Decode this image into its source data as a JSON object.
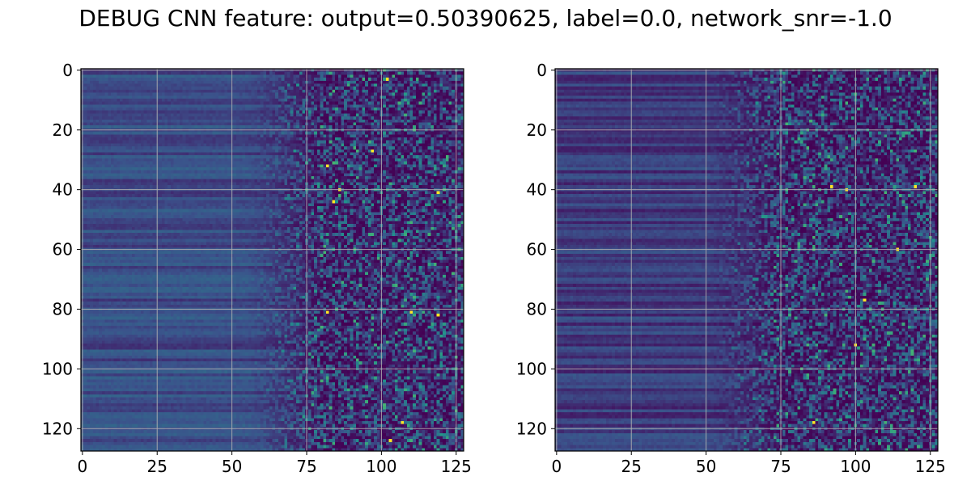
{
  "title": "DEBUG CNN feature: output=0.50390625, label=0.0, network_snr=-1.0",
  "colormap": [
    "#440154",
    "#3b528b",
    "#21918c",
    "#5ec962",
    "#fde725"
  ],
  "chart_data": [
    {
      "type": "heatmap",
      "panel": "left",
      "rows": 128,
      "cols": 128,
      "xlim": [
        -0.5,
        127.5
      ],
      "ylim": [
        127.5,
        -0.5
      ],
      "y_inverted": true,
      "grid": true,
      "xticks": [
        0,
        25,
        50,
        75,
        100,
        125
      ],
      "yticks": [
        0,
        20,
        40,
        60,
        80,
        100,
        120
      ],
      "xtick_labels": [
        "0",
        "25",
        "50",
        "75",
        "100",
        "125"
      ],
      "ytick_labels": [
        "0",
        "20",
        "40",
        "60",
        "80",
        "100",
        "120"
      ],
      "pattern": "horizontal row bands of low-medium intensity for columns 0-50; sparse noisy speckle with higher intensities for columns 70-127",
      "notable_bright_cells": [
        [
          102,
          3
        ],
        [
          97,
          27
        ],
        [
          82,
          32
        ],
        [
          86,
          40
        ],
        [
          84,
          44
        ],
        [
          119,
          41
        ],
        [
          110,
          81
        ],
        [
          119,
          82
        ],
        [
          82,
          81
        ],
        [
          107,
          118
        ],
        [
          103,
          124
        ]
      ]
    },
    {
      "type": "heatmap",
      "panel": "right",
      "rows": 128,
      "cols": 128,
      "xlim": [
        -0.5,
        127.5
      ],
      "ylim": [
        127.5,
        -0.5
      ],
      "y_inverted": true,
      "grid": true,
      "xticks": [
        0,
        25,
        50,
        75,
        100,
        125
      ],
      "yticks": [
        0,
        20,
        40,
        60,
        80,
        100,
        120
      ],
      "xtick_labels": [
        "0",
        "25",
        "50",
        "75",
        "100",
        "125"
      ],
      "ytick_labels": [
        "0",
        "20",
        "40",
        "60",
        "80",
        "100",
        "120"
      ],
      "pattern": "darker horizontal row bands for columns 0-50; sparse noisy speckle for columns 60-127",
      "notable_bright_cells": [
        [
          97,
          40
        ],
        [
          103,
          77
        ],
        [
          100,
          92
        ],
        [
          114,
          60
        ],
        [
          120,
          39
        ],
        [
          92,
          39
        ],
        [
          86,
          118
        ]
      ]
    }
  ]
}
